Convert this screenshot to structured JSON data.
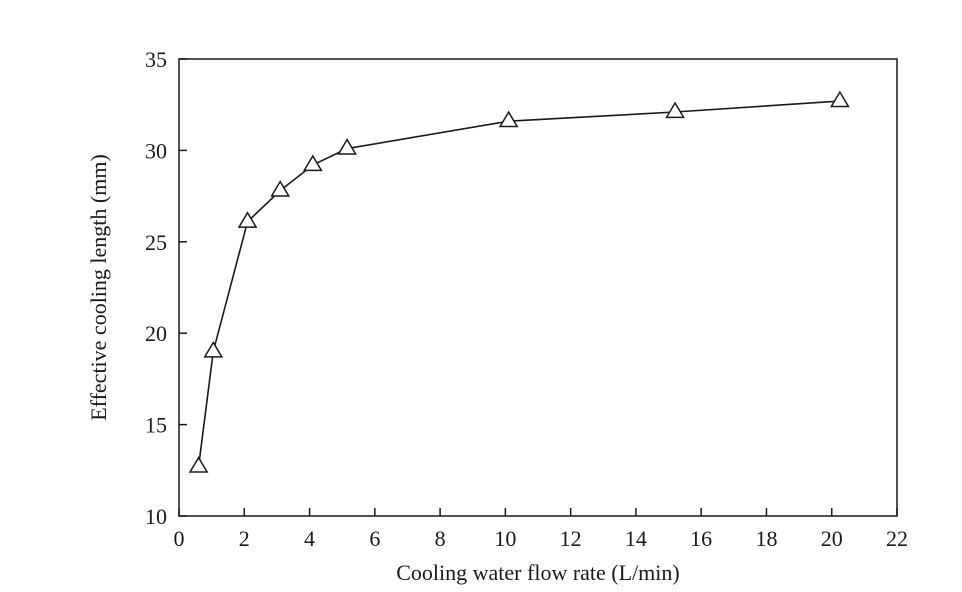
{
  "chart_data": {
    "type": "line",
    "title": "",
    "xlabel": "Cooling water flow rate (L/min)",
    "ylabel": "Effective cooling length (mm)",
    "xlim": [
      0,
      22
    ],
    "ylim": [
      10,
      35
    ],
    "x_ticks": [
      0,
      2,
      4,
      6,
      8,
      10,
      12,
      14,
      16,
      18,
      20,
      22
    ],
    "y_ticks": [
      10,
      15,
      20,
      25,
      30,
      35
    ],
    "grid": false,
    "legend": "none",
    "marker": "open-triangle",
    "line_color": "#1a1a1a",
    "series": [
      {
        "x": [
          0.6,
          1.05,
          2.1,
          3.1,
          4.1,
          5.15,
          10.1,
          15.2,
          20.25
        ],
        "y": [
          12.7,
          19.0,
          26.1,
          27.8,
          29.2,
          30.1,
          31.6,
          32.1,
          32.7
        ]
      }
    ]
  }
}
